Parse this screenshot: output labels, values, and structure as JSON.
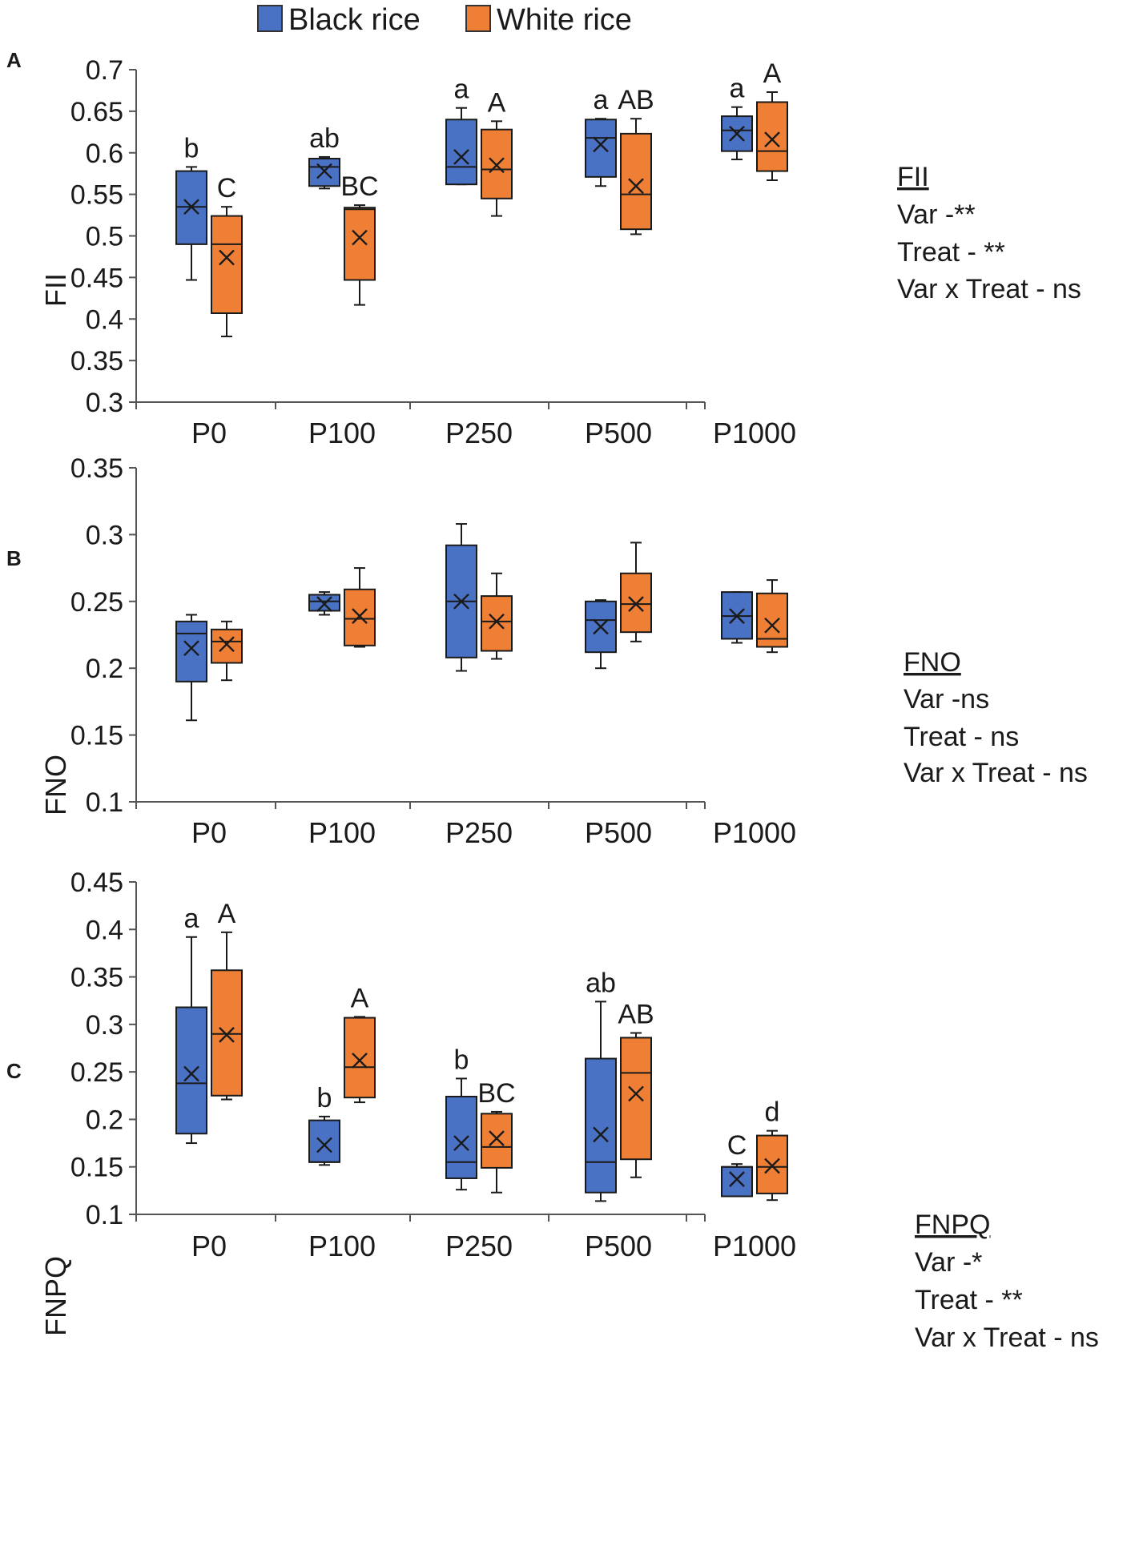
{
  "colors": {
    "black_rice": "#4a72c4",
    "white_rice": "#ef7f34",
    "line": "#1a1a1a",
    "axis": "#555555"
  },
  "legend": [
    {
      "name": "Black rice",
      "color": "#4a72c4"
    },
    {
      "name": "White rice",
      "color": "#ef7f34"
    }
  ],
  "chart_data": [
    {
      "type": "box",
      "panel": "A",
      "ylabel": "FII",
      "ylim": [
        0.3,
        0.7
      ],
      "yticks": [
        "0.7",
        "0.65",
        "0.6",
        "0.55",
        "0.5",
        "0.45",
        "0.4",
        "0.35",
        "0.3"
      ],
      "categories": [
        "P0",
        "P100",
        "P250",
        "P500",
        "P1000"
      ],
      "stats_title": "FII",
      "stats": [
        "Var -**",
        "Treat - **",
        "Var x Treat - ns"
      ],
      "series": [
        {
          "name": "Black rice",
          "boxes": [
            {
              "min": 0.447,
              "q1": 0.49,
              "median": 0.535,
              "q3": 0.578,
              "max": 0.583,
              "mean": 0.535
            },
            {
              "min": 0.557,
              "q1": 0.56,
              "median": 0.583,
              "q3": 0.593,
              "max": 0.595,
              "mean": 0.578
            },
            {
              "min": 0.562,
              "q1": 0.562,
              "median": 0.583,
              "q3": 0.64,
              "max": 0.654,
              "mean": 0.595
            },
            {
              "min": 0.56,
              "q1": 0.571,
              "median": 0.618,
              "q3": 0.64,
              "max": 0.641,
              "mean": 0.61
            },
            {
              "min": 0.592,
              "q1": 0.602,
              "median": 0.627,
              "q3": 0.644,
              "max": 0.655,
              "mean": 0.623
            }
          ],
          "labels": [
            "b",
            "ab",
            "a",
            "a",
            "a"
          ]
        },
        {
          "name": "White rice",
          "boxes": [
            {
              "min": 0.379,
              "q1": 0.407,
              "median": 0.49,
              "q3": 0.524,
              "max": 0.535,
              "mean": 0.474
            },
            {
              "min": 0.417,
              "q1": 0.447,
              "median": 0.532,
              "q3": 0.534,
              "max": 0.537,
              "mean": 0.498
            },
            {
              "min": 0.524,
              "q1": 0.545,
              "median": 0.58,
              "q3": 0.628,
              "max": 0.638,
              "mean": 0.585
            },
            {
              "min": 0.502,
              "q1": 0.508,
              "median": 0.55,
              "q3": 0.623,
              "max": 0.641,
              "mean": 0.56
            },
            {
              "min": 0.567,
              "q1": 0.578,
              "median": 0.602,
              "q3": 0.661,
              "max": 0.673,
              "mean": 0.616
            }
          ],
          "labels": [
            "C",
            "BC",
            "A",
            "AB",
            "A"
          ]
        }
      ]
    },
    {
      "type": "box",
      "panel": "B",
      "ylabel": "FNO",
      "ylim": [
        0.1,
        0.35
      ],
      "yticks": [
        "0.35",
        "0.3",
        "0.25",
        "0.2",
        "0.15",
        "0.1"
      ],
      "categories": [
        "P0",
        "P100",
        "P250",
        "P500",
        "P1000"
      ],
      "stats_title": "FNO",
      "stats": [
        "Var -ns",
        "Treat - ns",
        "Var x Treat - ns"
      ],
      "series": [
        {
          "name": "Black rice",
          "boxes": [
            {
              "min": 0.161,
              "q1": 0.19,
              "median": 0.226,
              "q3": 0.235,
              "max": 0.24,
              "mean": 0.215
            },
            {
              "min": 0.24,
              "q1": 0.243,
              "median": 0.25,
              "q3": 0.255,
              "max": 0.257,
              "mean": 0.248
            },
            {
              "min": 0.198,
              "q1": 0.208,
              "median": 0.25,
              "q3": 0.292,
              "max": 0.308,
              "mean": 0.25
            },
            {
              "min": 0.2,
              "q1": 0.212,
              "median": 0.236,
              "q3": 0.25,
              "max": 0.251,
              "mean": 0.231
            },
            {
              "min": 0.219,
              "q1": 0.222,
              "median": 0.239,
              "q3": 0.257,
              "max": 0.257,
              "mean": 0.239
            }
          ],
          "labels": [
            "",
            "",
            "",
            "",
            ""
          ]
        },
        {
          "name": "White rice",
          "boxes": [
            {
              "min": 0.191,
              "q1": 0.204,
              "median": 0.22,
              "q3": 0.229,
              "max": 0.235,
              "mean": 0.218
            },
            {
              "min": 0.216,
              "q1": 0.217,
              "median": 0.237,
              "q3": 0.259,
              "max": 0.275,
              "mean": 0.239
            },
            {
              "min": 0.207,
              "q1": 0.213,
              "median": 0.235,
              "q3": 0.254,
              "max": 0.271,
              "mean": 0.235
            },
            {
              "min": 0.22,
              "q1": 0.227,
              "median": 0.248,
              "q3": 0.271,
              "max": 0.294,
              "mean": 0.248
            },
            {
              "min": 0.212,
              "q1": 0.216,
              "median": 0.222,
              "q3": 0.256,
              "max": 0.266,
              "mean": 0.232
            }
          ],
          "labels": [
            "",
            "",
            "",
            "",
            ""
          ]
        }
      ]
    },
    {
      "type": "box",
      "panel": "C",
      "ylabel": "FNPQ",
      "ylim": [
        0.1,
        0.45
      ],
      "yticks": [
        "0.45",
        "0.4",
        "0.35",
        "0.3",
        "0.25",
        "0.2",
        "0.15",
        "0.1"
      ],
      "categories": [
        "P0",
        "P100",
        "P250",
        "P500",
        "P1000"
      ],
      "stats_title": "FNPQ",
      "stats": [
        "Var -*",
        "Treat - **",
        "Var x Treat - ns"
      ],
      "series": [
        {
          "name": "Black rice",
          "boxes": [
            {
              "min": 0.175,
              "q1": 0.185,
              "median": 0.238,
              "q3": 0.318,
              "max": 0.392,
              "mean": 0.248
            },
            {
              "min": 0.152,
              "q1": 0.155,
              "median": 0.155,
              "q3": 0.199,
              "max": 0.203,
              "mean": 0.173
            },
            {
              "min": 0.126,
              "q1": 0.138,
              "median": 0.155,
              "q3": 0.224,
              "max": 0.243,
              "mean": 0.175
            },
            {
              "min": 0.114,
              "q1": 0.123,
              "median": 0.155,
              "q3": 0.264,
              "max": 0.324,
              "mean": 0.184
            },
            {
              "min": 0.119,
              "q1": 0.119,
              "median": 0.15,
              "q3": 0.15,
              "max": 0.153,
              "mean": 0.137
            }
          ],
          "labels": [
            "a",
            "b",
            "b",
            "ab",
            "C"
          ]
        },
        {
          "name": "White rice",
          "boxes": [
            {
              "min": 0.221,
              "q1": 0.225,
              "median": 0.29,
              "q3": 0.357,
              "max": 0.397,
              "mean": 0.289
            },
            {
              "min": 0.218,
              "q1": 0.223,
              "median": 0.255,
              "q3": 0.307,
              "max": 0.308,
              "mean": 0.262
            },
            {
              "min": 0.123,
              "q1": 0.149,
              "median": 0.171,
              "q3": 0.206,
              "max": 0.208,
              "mean": 0.18
            },
            {
              "min": 0.139,
              "q1": 0.158,
              "median": 0.249,
              "q3": 0.286,
              "max": 0.291,
              "mean": 0.227
            },
            {
              "min": 0.115,
              "q1": 0.122,
              "median": 0.15,
              "q3": 0.183,
              "max": 0.188,
              "mean": 0.151
            }
          ],
          "labels": [
            "A",
            "A",
            "BC",
            "AB",
            "d"
          ]
        }
      ]
    }
  ]
}
